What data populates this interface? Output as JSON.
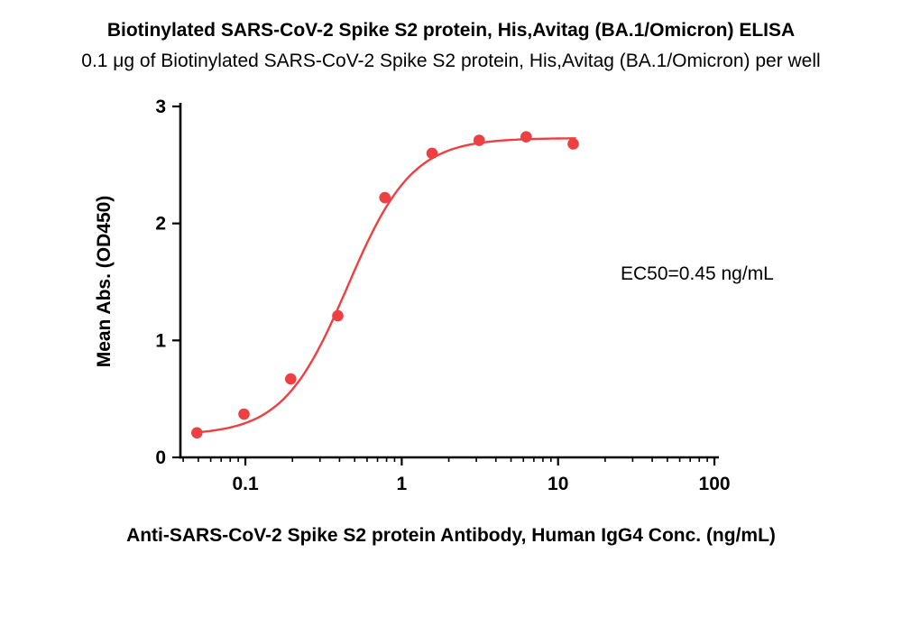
{
  "title": "Biotinylated SARS-CoV-2 Spike S2 protein, His,Avitag (BA.1/Omicron) ELISA",
  "subtitle": "0.1 μg of Biotinylated SARS-CoV-2 Spike S2 protein, His,Avitag (BA.1/Omicron) per well",
  "annotation": {
    "ec50_label": "EC50=0.45 ng/mL"
  },
  "chart_data": {
    "type": "scatter",
    "subtype": "dose-response ELISA curve with 4PL fit",
    "x_scale": "log",
    "grid": false,
    "legend": "none",
    "title": "Biotinylated SARS-CoV-2 Spike S2 protein, His,Avitag (BA.1/Omicron) ELISA",
    "xlabel": "Anti-SARS-CoV-2 Spike S2 protein Antibody, Human IgG4 Conc. (ng/mL)",
    "ylabel": "Mean Abs. (OD450)",
    "xlim": [
      0.0384,
      104
    ],
    "ylim": [
      0,
      3
    ],
    "x_ticks": [
      0.1,
      1,
      10,
      100
    ],
    "x_tick_labels": [
      "0.1",
      "1",
      "10",
      "100"
    ],
    "y_ticks": [
      0,
      1,
      2,
      3
    ],
    "points": {
      "x": [
        0.049,
        0.098,
        0.195,
        0.39,
        0.78,
        1.5625,
        3.125,
        6.25,
        12.5
      ],
      "y": [
        0.21,
        0.37,
        0.67,
        1.21,
        2.22,
        2.6,
        2.71,
        2.74,
        2.68
      ]
    },
    "fit_curve": {
      "model": "4PL",
      "bottom": 0.19,
      "top": 2.73,
      "ec50": 0.45,
      "hill": 2.1,
      "draw_range": [
        0.048,
        13
      ]
    },
    "ec50_text": "EC50=0.45 ng/mL",
    "color": "#ed4042",
    "axis_color": "#000000"
  }
}
